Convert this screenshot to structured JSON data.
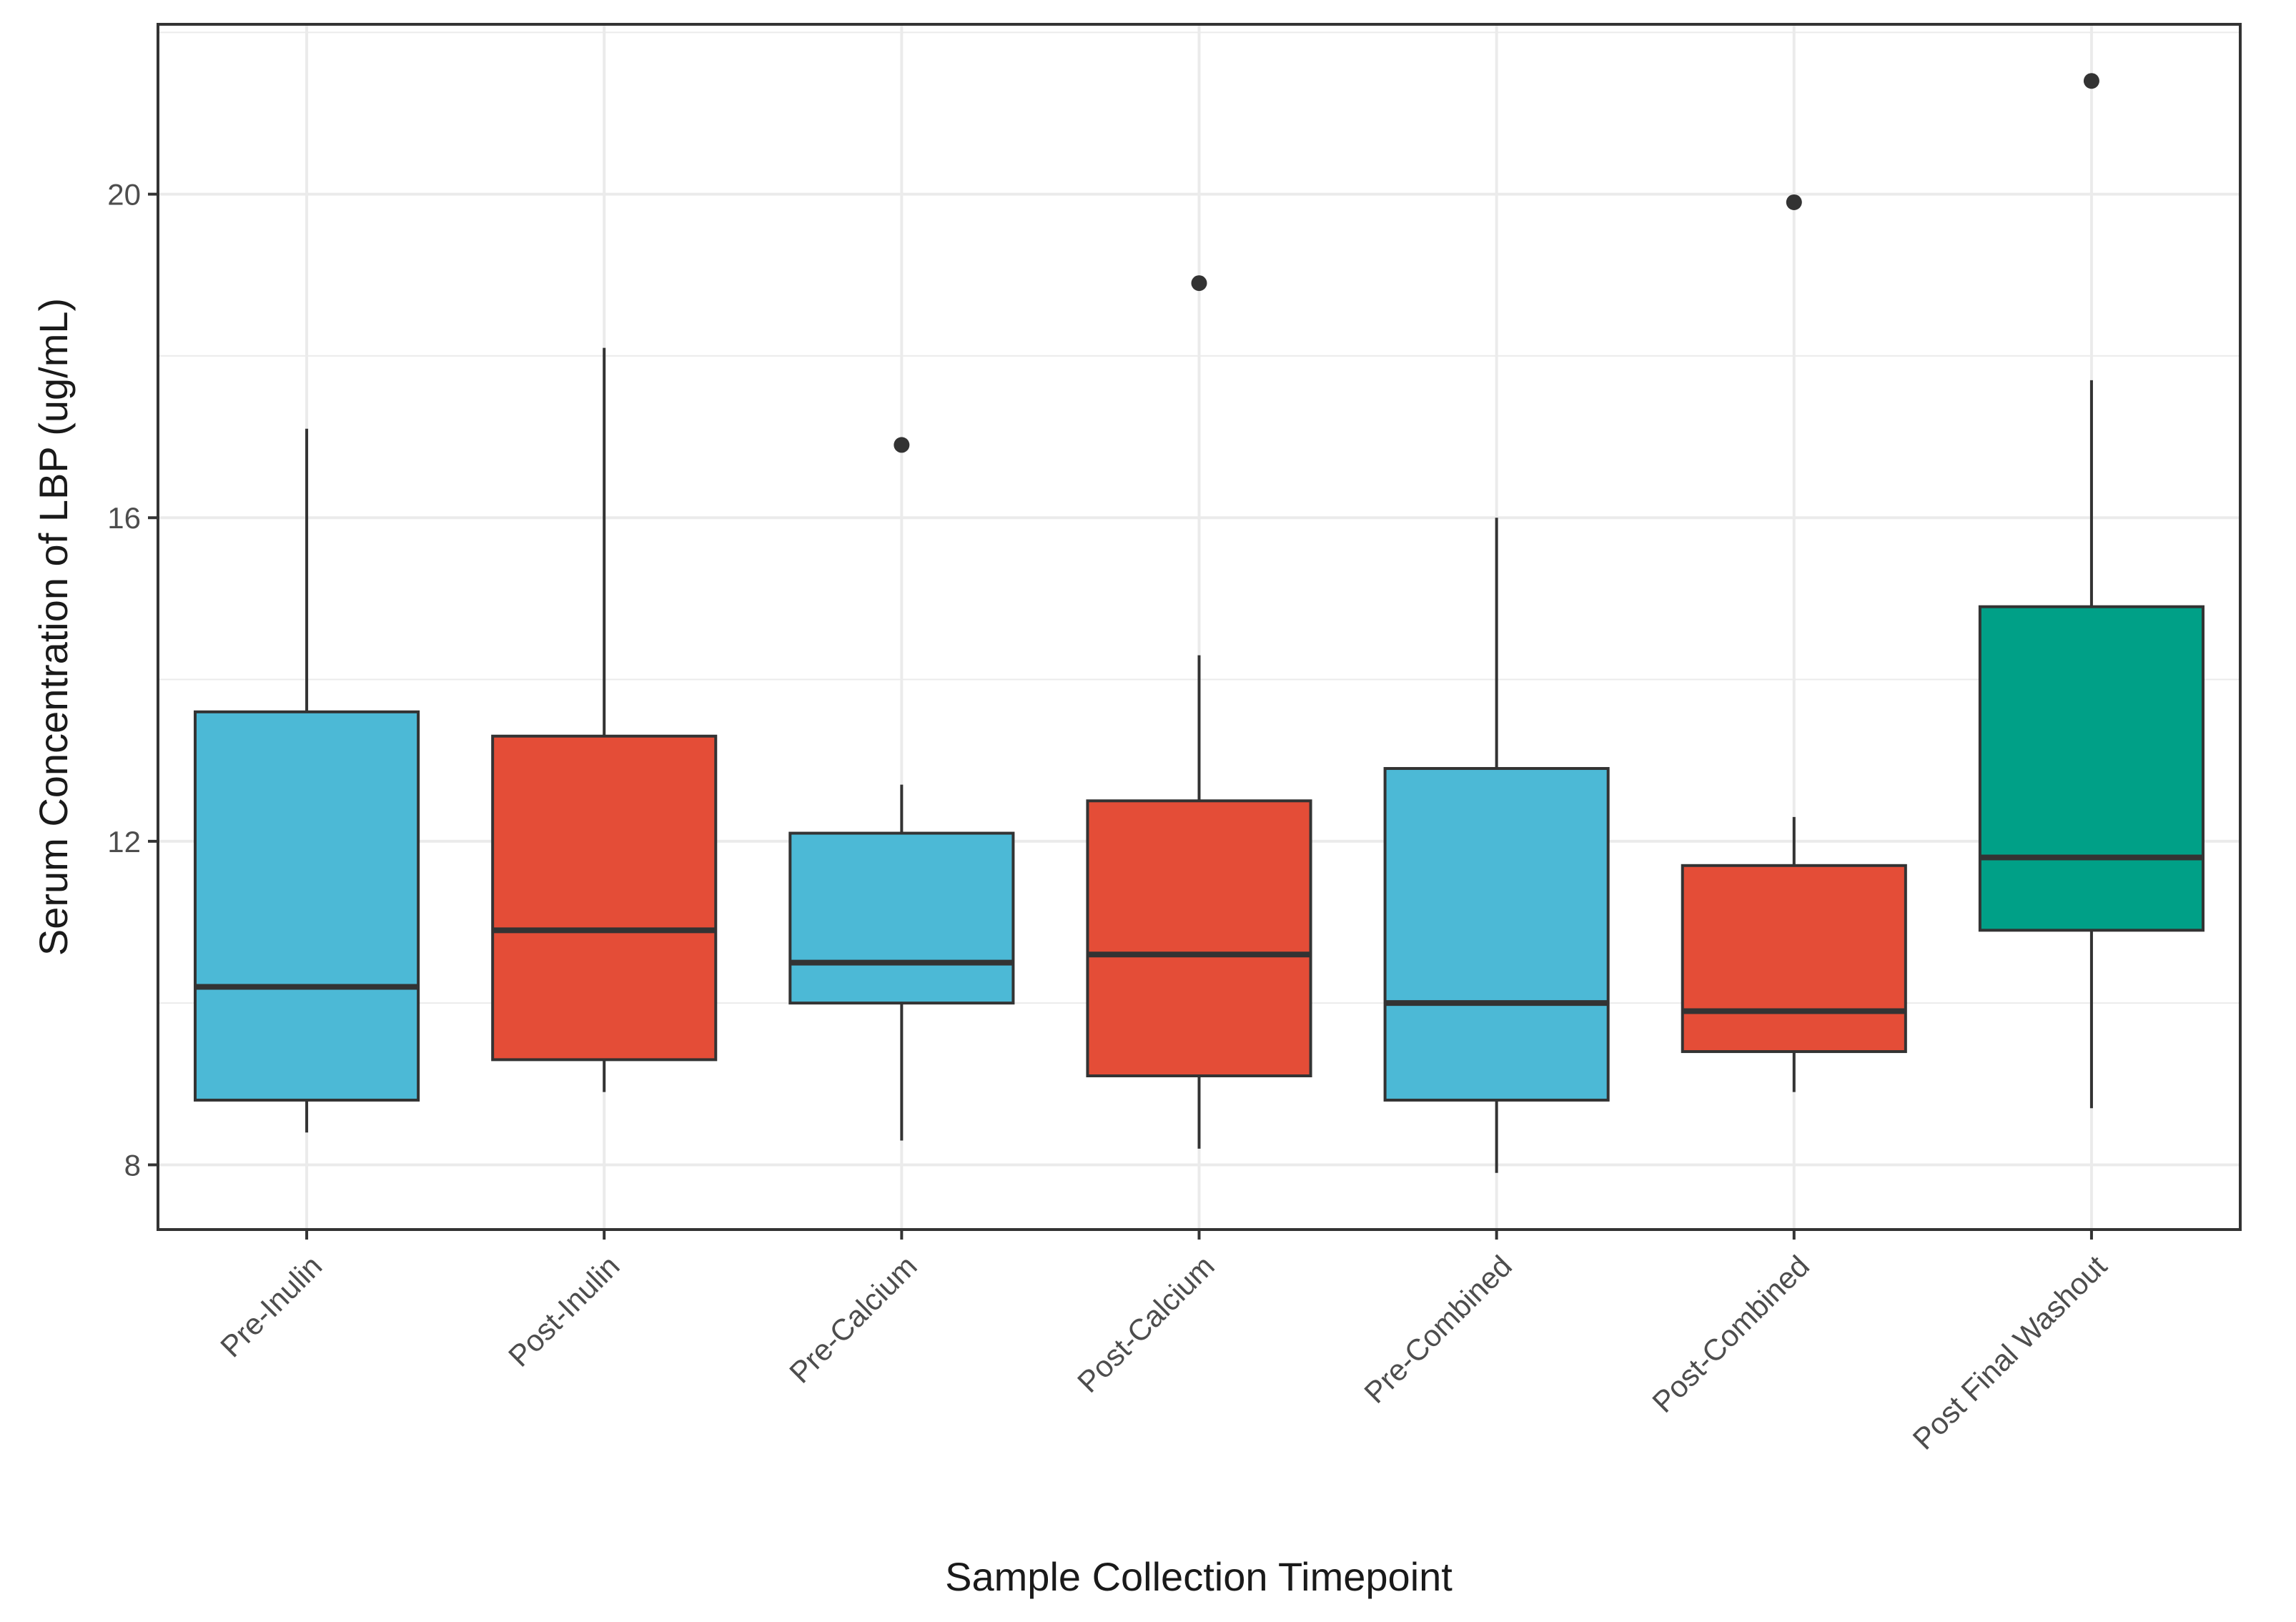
{
  "chart_data": {
    "type": "box",
    "title": "",
    "xlabel": "Sample Collection Timepoint",
    "ylabel": "Serum Concentration of LBP (ug/mL)",
    "ylim": [
      7.2,
      22.1
    ],
    "yticks": [
      8,
      12,
      16,
      20
    ],
    "ytick_labels": [
      "8",
      "12",
      "16",
      "20"
    ],
    "grid": true,
    "legend": "none",
    "categories": [
      "Pre-Inulin",
      "Post-Inulin",
      "Pre-Calcium",
      "Post-Calcium",
      "Pre-Combined",
      "Post-Combined",
      "Post Final Washout"
    ],
    "boxes": [
      {
        "label": "Pre-Inulin",
        "whisker_low": 8.4,
        "q1": 8.8,
        "median": 10.2,
        "q3": 13.6,
        "whisker_high": 17.1,
        "outliers": [],
        "fill": "#4CB9D6"
      },
      {
        "label": "Post-Inulin",
        "whisker_low": 8.9,
        "q1": 9.3,
        "median": 10.9,
        "q3": 13.3,
        "whisker_high": 18.1,
        "outliers": [],
        "fill": "#E44D37"
      },
      {
        "label": "Pre-Calcium",
        "whisker_low": 8.3,
        "q1": 10.0,
        "median": 10.5,
        "q3": 12.1,
        "whisker_high": 12.7,
        "outliers": [
          16.9
        ],
        "fill": "#4CB9D6"
      },
      {
        "label": "Post-Calcium",
        "whisker_low": 8.2,
        "q1": 9.1,
        "median": 10.6,
        "q3": 12.5,
        "whisker_high": 14.3,
        "outliers": [
          18.9
        ],
        "fill": "#E44D37"
      },
      {
        "label": "Pre-Combined",
        "whisker_low": 7.9,
        "q1": 8.8,
        "median": 10.0,
        "q3": 12.9,
        "whisker_high": 16.0,
        "outliers": [],
        "fill": "#4CB9D6"
      },
      {
        "label": "Post-Combined",
        "whisker_low": 8.9,
        "q1": 9.4,
        "median": 9.9,
        "q3": 11.7,
        "whisker_high": 12.3,
        "outliers": [
          19.9
        ],
        "fill": "#E44D37"
      },
      {
        "label": "Post Final Washout",
        "whisker_low": 8.7,
        "q1": 10.9,
        "median": 11.8,
        "q3": 14.9,
        "whisker_high": 17.7,
        "outliers": [
          21.4
        ],
        "fill": "#00A087"
      }
    ]
  },
  "colors": {
    "grid": "#EBEBEB",
    "frame": "#333333",
    "box_edge": "#333333",
    "background": "#FFFFFF"
  }
}
